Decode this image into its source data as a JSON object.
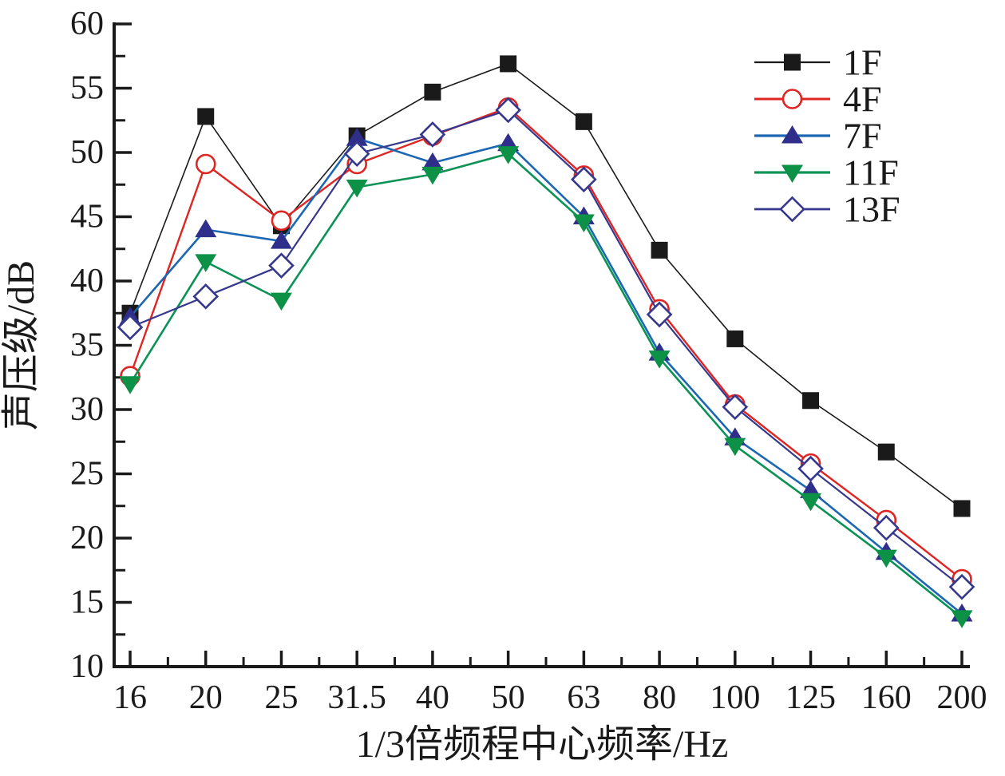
{
  "chart_data": {
    "type": "line",
    "title": "",
    "xlabel": "1/3倍频程中心频率/Hz",
    "ylabel": "声压级/dB",
    "categories": [
      "16",
      "20",
      "25",
      "31.5",
      "40",
      "50",
      "63",
      "80",
      "100",
      "125",
      "160",
      "200"
    ],
    "ylim": [
      10,
      60
    ],
    "y_major_step": 5,
    "y_minor_step": 2.5,
    "grid": false,
    "legend_position": "top-right",
    "axis_color": "#1a1a1a",
    "series": [
      {
        "name": "1F",
        "marker": "square-filled",
        "line_color": "#1a1a1a",
        "marker_color": "#1a1a1a",
        "line_width": 1.6,
        "values": [
          37.5,
          52.8,
          44.3,
          51.3,
          54.7,
          56.9,
          52.4,
          42.4,
          35.5,
          30.7,
          26.7,
          22.3
        ]
      },
      {
        "name": "4F",
        "marker": "circle-open",
        "line_color": "#df2522",
        "marker_color": "#df2522",
        "line_width": 2.4,
        "values": [
          32.6,
          49.1,
          44.7,
          49.1,
          51.3,
          53.5,
          48.2,
          37.8,
          30.4,
          25.8,
          21.4,
          16.8
        ]
      },
      {
        "name": "7F",
        "marker": "triangle-up-filled",
        "line_color": "#1b67b3",
        "marker_color": "#2f2f8b",
        "line_width": 2.6,
        "values": [
          37.2,
          44.0,
          43.1,
          51.1,
          49.2,
          50.7,
          45.0,
          34.4,
          27.8,
          23.7,
          18.9,
          14.1
        ]
      },
      {
        "name": "11F",
        "marker": "triangle-down-filled",
        "line_color": "#0a9355",
        "marker_color": "#0c9146",
        "line_width": 2.6,
        "values": [
          32.0,
          41.5,
          38.5,
          47.3,
          48.3,
          49.9,
          44.6,
          34.0,
          27.2,
          22.9,
          18.5,
          13.8
        ]
      },
      {
        "name": "13F",
        "marker": "diamond-open",
        "line_color": "#35388d",
        "marker_color": "#35388d",
        "line_width": 2.2,
        "values": [
          36.4,
          38.8,
          41.2,
          49.9,
          51.4,
          53.3,
          47.9,
          37.4,
          30.2,
          25.4,
          20.8,
          16.2
        ]
      }
    ]
  }
}
